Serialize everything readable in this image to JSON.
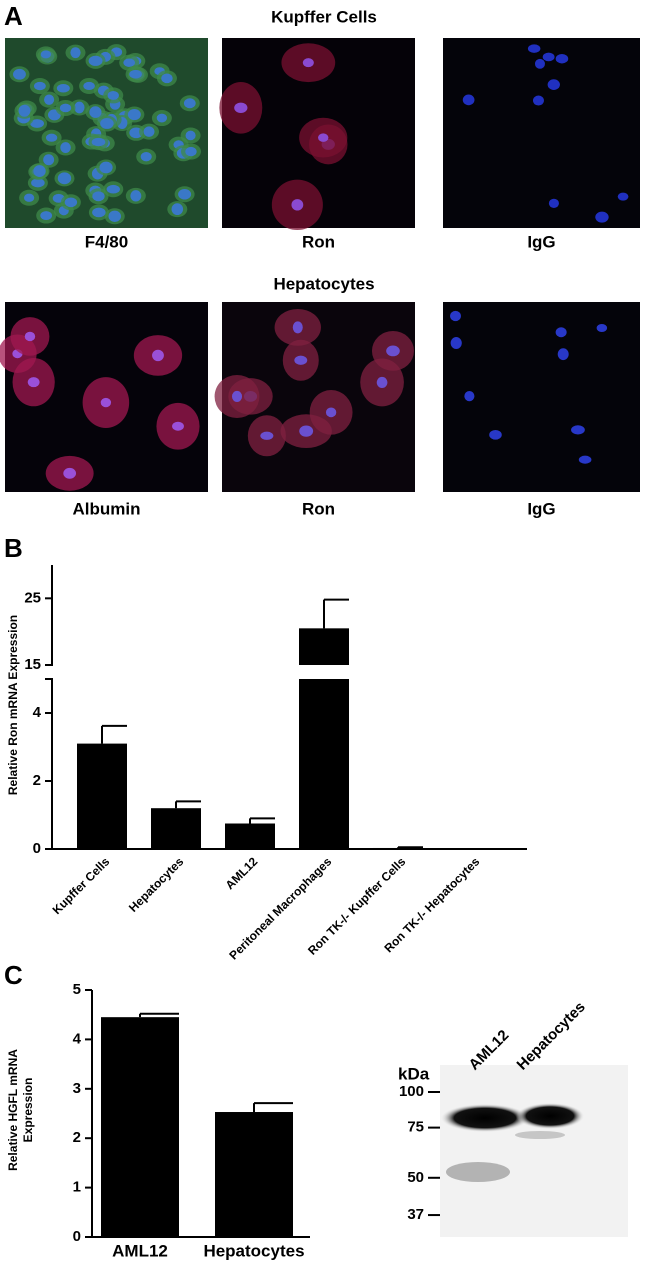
{
  "panel_labels": [
    "A",
    "B",
    "C"
  ],
  "microscopy": {
    "rows": [
      {
        "title": "Kupffer Cells",
        "labels": [
          "F4/80",
          "Ron",
          "IgG"
        ]
      },
      {
        "title": "Hepatocytes",
        "labels": [
          "Albumin",
          "Ron",
          "IgG"
        ]
      }
    ]
  },
  "chart_data": [
    {
      "type": "bar",
      "ylabel": "Relative Ron mRNA Expression",
      "categories": [
        "Kupffer Cells",
        "Hepatocytes",
        "AML12",
        "Peritoneal Macrophages",
        "Ron TK-/- Kupffer Cells",
        "Ron TK-/- Hepatocytes"
      ],
      "values": [
        3.1,
        1.2,
        0.75,
        20.5,
        0.03,
        0
      ],
      "errors": [
        0.52,
        0.2,
        0.15,
        4.3,
        0.02,
        0
      ],
      "color": "#000000",
      "ylim": [
        0,
        30
      ],
      "axis_break": [
        5,
        15
      ],
      "yticks": [
        0,
        2,
        4,
        15,
        25
      ]
    },
    {
      "type": "bar",
      "ylabel": [
        "Relative HGFL mRNA",
        "Expression"
      ],
      "categories": [
        "AML12",
        "Hepatocytes"
      ],
      "values": [
        4.45,
        2.53
      ],
      "errors": [
        0.07,
        0.18
      ],
      "color": "#000000",
      "ylim": [
        0,
        5
      ],
      "yticks": [
        0,
        1,
        2,
        3,
        4,
        5
      ]
    }
  ],
  "blot": {
    "unit": "kDa",
    "lanes": [
      "AML12",
      "Hepatocytes"
    ],
    "markers": [
      100,
      75,
      50,
      37
    ]
  }
}
